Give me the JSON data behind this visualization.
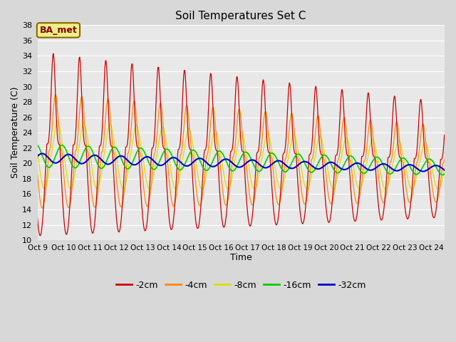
{
  "title": "Soil Temperatures Set C",
  "xlabel": "Time",
  "ylabel": "Soil Temperature (C)",
  "ylim": [
    10,
    38
  ],
  "yticks": [
    10,
    12,
    14,
    16,
    18,
    20,
    22,
    24,
    26,
    28,
    30,
    32,
    34,
    36,
    38
  ],
  "xtick_labels": [
    "Oct 9",
    "Oct 10",
    "Oct 11",
    "Oct 12",
    "Oct 13",
    "Oct 14",
    "Oct 15",
    "Oct 16",
    "Oct 17",
    "Oct 18",
    "Oct 19",
    "Oct 20",
    "Oct 21",
    "Oct 22",
    "Oct 23",
    "Oct 24"
  ],
  "colors": {
    "-2cm": "#cc0000",
    "-4cm": "#ff8800",
    "-8cm": "#dddd00",
    "-16cm": "#00cc00",
    "-32cm": "#0000cc"
  },
  "annotation_text": "BA_met",
  "annotation_bg": "#eeee88",
  "annotation_fg": "#880000",
  "annotation_border": "#886600",
  "fig_bg": "#d8d8d8",
  "plot_bg": "#e8e8e8",
  "grid_color": "#ffffff"
}
